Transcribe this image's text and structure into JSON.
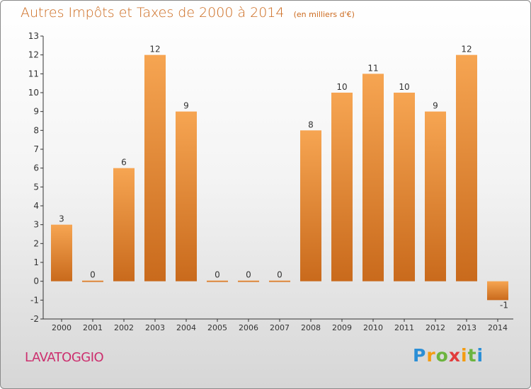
{
  "header": {
    "title": "Autres Impôts et Taxes de 2000 à 2014",
    "unit": "(en milliers d'€)"
  },
  "footer": {
    "commune": "LAVATOGGIO",
    "logo_text": "Proxiti"
  },
  "colors": {
    "bar_light": "#f6a552",
    "bar_dark": "#c96a1c",
    "title": "#cc6a1e",
    "commune": "#cc2f6e"
  },
  "chart_data": {
    "type": "bar",
    "categories": [
      "2000",
      "2001",
      "2002",
      "2003",
      "2004",
      "2005",
      "2006",
      "2007",
      "2008",
      "2009",
      "2010",
      "2011",
      "2012",
      "2013",
      "2014"
    ],
    "values": [
      3,
      0,
      6,
      12,
      9,
      0,
      0,
      0,
      8,
      10,
      11,
      10,
      9,
      12,
      -1
    ],
    "data_labels": [
      "3",
      "0",
      "6",
      "12",
      "9",
      "0",
      "0",
      "0",
      "8",
      "10",
      "11",
      "10",
      "9",
      "12",
      "-1"
    ],
    "title": "Autres Impôts et Taxes de 2000 à 2014",
    "subtitle": "(en milliers d'€)",
    "xlabel": "",
    "ylabel": "",
    "ylim": [
      -2,
      13
    ],
    "yticks": [
      -2,
      -1,
      0,
      1,
      2,
      3,
      4,
      5,
      6,
      7,
      8,
      9,
      10,
      11,
      12,
      13
    ],
    "grid": false
  }
}
